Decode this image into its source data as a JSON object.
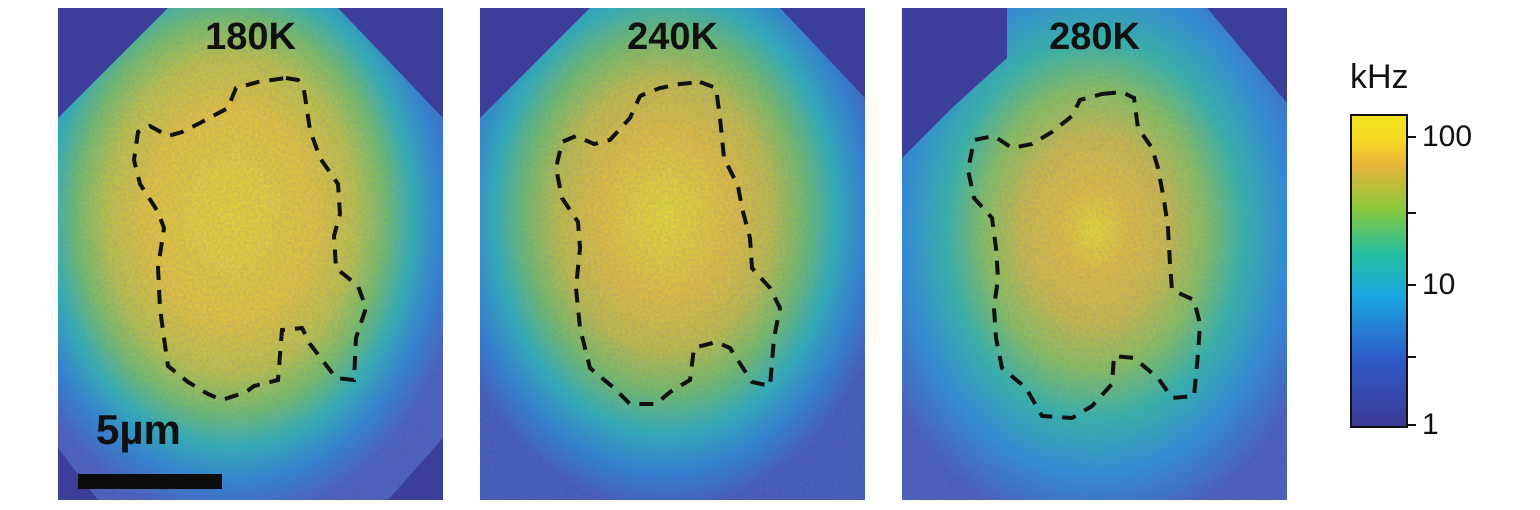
{
  "panels": [
    {
      "title": "180K"
    },
    {
      "title": "240K"
    },
    {
      "title": "280K"
    }
  ],
  "scalebar": {
    "label": "5µm"
  },
  "colorbar": {
    "unit": "kHz",
    "labels": [
      "100",
      "10",
      "1"
    ],
    "colors": [
      "#f3e31d",
      "#e7b43a",
      "#8bc93b",
      "#25bf9e",
      "#1aa7e0",
      "#2f5cc8",
      "#3a3a95"
    ]
  }
}
